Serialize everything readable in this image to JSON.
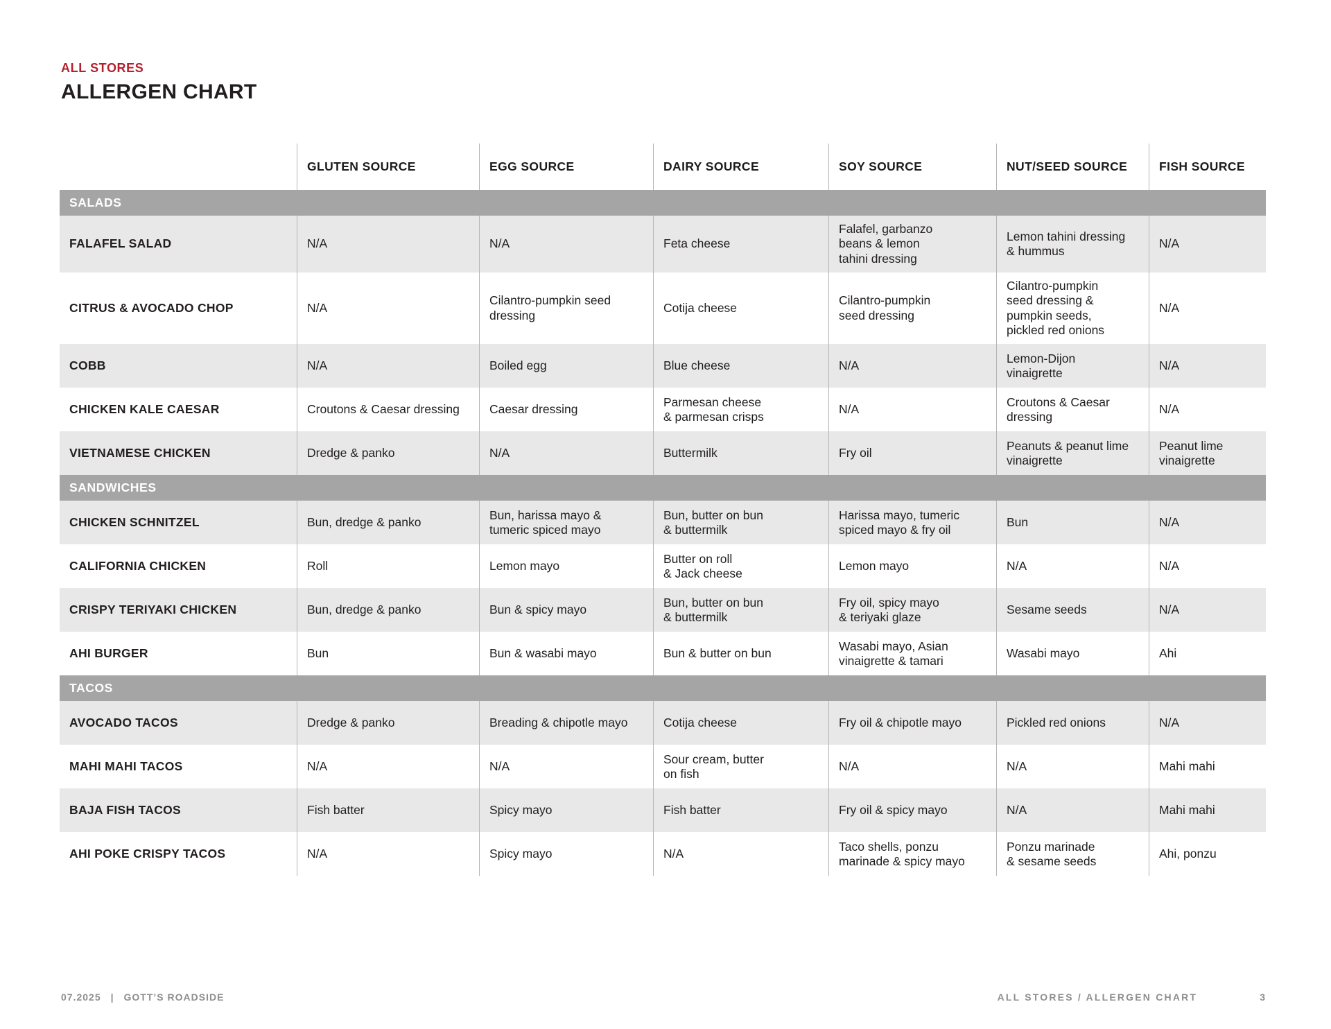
{
  "page": {
    "eyebrow": "ALL STORES",
    "title": "ALLERGEN CHART"
  },
  "colors": {
    "accent_red": "#b5202d",
    "section_bar_gray": "#a5a5a5",
    "row_alt_gray": "#e8e8e8",
    "divider_gray": "#b5b5b5",
    "footer_gray": "#8e8e8e"
  },
  "table": {
    "columns": [
      "GLUTEN SOURCE",
      "EGG SOURCE",
      "DAIRY SOURCE",
      "SOY SOURCE",
      "NUT/SEED SOURCE",
      "FISH SOURCE"
    ],
    "sections": [
      {
        "name": "SALADS",
        "rows": [
          {
            "item": "FALAFEL SALAD",
            "cells": [
              "N/A",
              "N/A",
              "Feta cheese",
              "Falafel, garbanzo\nbeans & lemon\ntahini dressing",
              "Lemon tahini dressing\n& hummus",
              "N/A"
            ]
          },
          {
            "item": "CITRUS & AVOCADO CHOP",
            "cells": [
              "N/A",
              "Cilantro-pumpkin seed\ndressing",
              "Cotija cheese",
              "Cilantro-pumpkin\nseed dressing",
              "Cilantro-pumpkin\nseed dressing &\npumpkin seeds,\npickled red onions",
              "N/A"
            ]
          },
          {
            "item": "COBB",
            "cells": [
              "N/A",
              "Boiled egg",
              "Blue cheese",
              "N/A",
              "Lemon-Dijon\nvinaigrette",
              "N/A"
            ]
          },
          {
            "item": "CHICKEN KALE CAESAR",
            "cells": [
              "Croutons & Caesar dressing",
              "Caesar dressing",
              "Parmesan cheese\n& parmesan crisps",
              "N/A",
              "Croutons & Caesar\ndressing",
              "N/A"
            ]
          },
          {
            "item": "VIETNAMESE CHICKEN",
            "cells": [
              "Dredge & panko",
              "N/A",
              "Buttermilk",
              "Fry oil",
              "Peanuts & peanut lime\nvinaigrette",
              "Peanut lime\nvinaigrette"
            ]
          }
        ]
      },
      {
        "name": "SANDWICHES",
        "rows": [
          {
            "item": "CHICKEN SCHNITZEL",
            "cells": [
              "Bun, dredge & panko",
              "Bun, harissa mayo &\ntumeric spiced mayo",
              "Bun, butter on bun\n& buttermilk",
              "Harissa mayo, tumeric\nspiced mayo & fry oil",
              "Bun",
              "N/A"
            ]
          },
          {
            "item": "CALIFORNIA CHICKEN",
            "cells": [
              "Roll",
              "Lemon mayo",
              "Butter on roll\n& Jack cheese",
              "Lemon mayo",
              "N/A",
              "N/A"
            ]
          },
          {
            "item": "CRISPY TERIYAKI CHICKEN",
            "cells": [
              "Bun, dredge & panko",
              "Bun & spicy mayo",
              "Bun, butter on bun\n& buttermilk",
              "Fry oil, spicy mayo\n& teriyaki glaze",
              "Sesame seeds",
              "N/A"
            ]
          },
          {
            "item": "AHI BURGER",
            "cells": [
              "Bun",
              "Bun & wasabi mayo",
              "Bun & butter on bun",
              "Wasabi mayo, Asian\nvinaigrette & tamari",
              "Wasabi mayo",
              "Ahi"
            ]
          }
        ]
      },
      {
        "name": "TACOS",
        "rows": [
          {
            "item": "AVOCADO TACOS",
            "cells": [
              "Dredge & panko",
              "Breading & chipotle mayo",
              "Cotija cheese",
              "Fry oil & chipotle mayo",
              "Pickled red onions",
              "N/A"
            ]
          },
          {
            "item": "MAHI MAHI TACOS",
            "cells": [
              "N/A",
              "N/A",
              "Sour cream, butter\non fish",
              "N/A",
              "N/A",
              "Mahi mahi"
            ]
          },
          {
            "item": "BAJA FISH TACOS",
            "cells": [
              "Fish batter",
              "Spicy mayo",
              "Fish batter",
              "Fry oil & spicy mayo",
              "N/A",
              "Mahi mahi"
            ]
          },
          {
            "item": "AHI POKE CRISPY TACOS",
            "cells": [
              "N/A",
              "Spicy mayo",
              "N/A",
              "Taco shells, ponzu\nmarinade & spicy mayo",
              "Ponzu marinade\n& sesame seeds",
              "Ahi, ponzu"
            ]
          }
        ]
      }
    ]
  },
  "footer": {
    "date": "07.2025",
    "separator": "|",
    "brand": "GOTT’S ROADSIDE",
    "doc_label": "ALL STORES / ALLERGEN CHART",
    "page_number": "3"
  }
}
